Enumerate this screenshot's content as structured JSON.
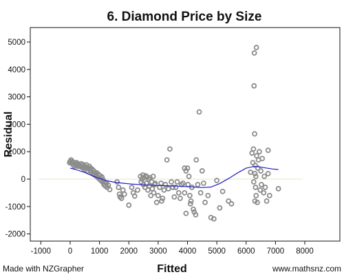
{
  "chart_data": {
    "type": "scatter",
    "title": "6. Diamond Price by Size",
    "xlabel": "Fitted",
    "ylabel": "Residual",
    "xlim": [
      -1000,
      8000
    ],
    "ylim": [
      -2000,
      5000
    ],
    "xticks": [
      -1000,
      0,
      1000,
      2000,
      3000,
      4000,
      5000,
      6000,
      7000,
      8000
    ],
    "yticks": [
      -2000,
      -1000,
      0,
      1000,
      2000,
      3000,
      4000,
      5000
    ],
    "grid": false,
    "zero_line": true,
    "colors": {
      "points": "#8c8c8c",
      "smoother": "#1a1acc",
      "zero_line": "#e6e6cc"
    },
    "points": [
      [
        -20,
        600
      ],
      [
        0,
        650
      ],
      [
        30,
        700
      ],
      [
        50,
        580
      ],
      [
        80,
        640
      ],
      [
        100,
        520
      ],
      [
        120,
        610
      ],
      [
        140,
        470
      ],
      [
        170,
        560
      ],
      [
        200,
        500
      ],
      [
        220,
        600
      ],
      [
        250,
        470
      ],
      [
        270,
        560
      ],
      [
        300,
        520
      ],
      [
        320,
        480
      ],
      [
        350,
        450
      ],
      [
        380,
        560
      ],
      [
        400,
        500
      ],
      [
        430,
        410
      ],
      [
        450,
        520
      ],
      [
        480,
        430
      ],
      [
        500,
        350
      ],
      [
        520,
        450
      ],
      [
        550,
        520
      ],
      [
        580,
        300
      ],
      [
        600,
        420
      ],
      [
        620,
        380
      ],
      [
        650,
        470
      ],
      [
        680,
        320
      ],
      [
        700,
        400
      ],
      [
        720,
        260
      ],
      [
        760,
        350
      ],
      [
        780,
        200
      ],
      [
        800,
        300
      ],
      [
        830,
        150
      ],
      [
        850,
        250
      ],
      [
        880,
        180
      ],
      [
        900,
        100
      ],
      [
        920,
        220
      ],
      [
        950,
        50
      ],
      [
        980,
        150
      ],
      [
        1000,
        0
      ],
      [
        1020,
        120
      ],
      [
        1050,
        -50
      ],
      [
        1080,
        80
      ],
      [
        1100,
        -100
      ],
      [
        1120,
        -20
      ],
      [
        1150,
        -200
      ],
      [
        1170,
        -120
      ],
      [
        1200,
        -250
      ],
      [
        1230,
        -150
      ],
      [
        1260,
        -300
      ],
      [
        1300,
        -220
      ],
      [
        1350,
        -380
      ],
      [
        1600,
        -100
      ],
      [
        1650,
        -300
      ],
      [
        1680,
        -550
      ],
      [
        1700,
        -650
      ],
      [
        1750,
        -700
      ],
      [
        1800,
        -400
      ],
      [
        1850,
        -550
      ],
      [
        2000,
        -950
      ],
      [
        2100,
        -300
      ],
      [
        2150,
        -500
      ],
      [
        2200,
        -620
      ],
      [
        2300,
        -400
      ],
      [
        2400,
        100
      ],
      [
        2420,
        -100
      ],
      [
        2450,
        0
      ],
      [
        2480,
        150
      ],
      [
        2500,
        -200
      ],
      [
        2520,
        50
      ],
      [
        2550,
        -300
      ],
      [
        2580,
        120
      ],
      [
        2600,
        -150
      ],
      [
        2620,
        80
      ],
      [
        2650,
        -400
      ],
      [
        2680,
        0
      ],
      [
        2700,
        -250
      ],
      [
        2720,
        50
      ],
      [
        2750,
        -600
      ],
      [
        2780,
        -100
      ],
      [
        2800,
        -350
      ],
      [
        2830,
        100
      ],
      [
        2850,
        -500
      ],
      [
        2880,
        -200
      ],
      [
        2900,
        -150
      ],
      [
        2950,
        -850
      ],
      [
        3000,
        -600
      ],
      [
        3050,
        -300
      ],
      [
        3100,
        -150
      ],
      [
        3120,
        -800
      ],
      [
        3150,
        -700
      ],
      [
        3200,
        -400
      ],
      [
        3250,
        -200
      ],
      [
        3300,
        700
      ],
      [
        3350,
        -350
      ],
      [
        3400,
        1100
      ],
      [
        3450,
        -100
      ],
      [
        3500,
        -300
      ],
      [
        3550,
        -650
      ],
      [
        3600,
        -300
      ],
      [
        3650,
        -100
      ],
      [
        3700,
        -500
      ],
      [
        3750,
        -700
      ],
      [
        3800,
        -200
      ],
      [
        3850,
        -150
      ],
      [
        3900,
        -500
      ],
      [
        3900,
        400
      ],
      [
        3950,
        300
      ],
      [
        3950,
        -1250
      ],
      [
        4000,
        400
      ],
      [
        4020,
        -200
      ],
      [
        4050,
        100
      ],
      [
        4080,
        -600
      ],
      [
        4100,
        -900
      ],
      [
        4120,
        -800
      ],
      [
        4150,
        -300
      ],
      [
        4200,
        -1100
      ],
      [
        4230,
        -1200
      ],
      [
        4280,
        -1300
      ],
      [
        4300,
        700
      ],
      [
        4350,
        -200
      ],
      [
        4400,
        2450
      ],
      [
        4450,
        -500
      ],
      [
        4500,
        300
      ],
      [
        4550,
        -150
      ],
      [
        4600,
        -850
      ],
      [
        4700,
        -600
      ],
      [
        4800,
        -1400
      ],
      [
        4900,
        -1450
      ],
      [
        5000,
        -50
      ],
      [
        5100,
        -1050
      ],
      [
        5200,
        -450
      ],
      [
        5400,
        -800
      ],
      [
        5500,
        -900
      ],
      [
        6150,
        250
      ],
      [
        6200,
        950
      ],
      [
        6230,
        600
      ],
      [
        6250,
        1100
      ],
      [
        6260,
        -100
      ],
      [
        6270,
        3400
      ],
      [
        6280,
        4600
      ],
      [
        6290,
        1650
      ],
      [
        6300,
        200
      ],
      [
        6300,
        -800
      ],
      [
        6310,
        500
      ],
      [
        6320,
        -300
      ],
      [
        6330,
        100
      ],
      [
        6340,
        -600
      ],
      [
        6350,
        4800
      ],
      [
        6360,
        850
      ],
      [
        6380,
        -850
      ],
      [
        6400,
        400
      ],
      [
        6420,
        700
      ],
      [
        6450,
        1000
      ],
      [
        6480,
        -400
      ],
      [
        6500,
        300
      ],
      [
        6520,
        -200
      ],
      [
        6550,
        750
      ],
      [
        6600,
        -500
      ],
      [
        6620,
        100
      ],
      [
        6650,
        -300
      ],
      [
        6700,
        -800
      ],
      [
        6750,
        200
      ],
      [
        6800,
        -600
      ],
      [
        7100,
        -350
      ],
      [
        6750,
        1050
      ]
    ],
    "smoother": [
      [
        0,
        400
      ],
      [
        250,
        330
      ],
      [
        500,
        240
      ],
      [
        750,
        120
      ],
      [
        1000,
        20
      ],
      [
        1250,
        -60
      ],
      [
        1500,
        -110
      ],
      [
        1800,
        -150
      ],
      [
        2100,
        -180
      ],
      [
        2500,
        -210
      ],
      [
        2900,
        -230
      ],
      [
        3300,
        -240
      ],
      [
        3700,
        -260
      ],
      [
        4100,
        -280
      ],
      [
        4500,
        -310
      ],
      [
        4800,
        -290
      ],
      [
        5100,
        -160
      ],
      [
        5400,
        20
      ],
      [
        5700,
        220
      ],
      [
        6000,
        400
      ],
      [
        6300,
        470
      ],
      [
        6600,
        420
      ],
      [
        6900,
        370
      ],
      [
        7100,
        350
      ]
    ]
  },
  "footer": {
    "left": "Made with NZGrapher",
    "right": "www.mathsnz.com"
  }
}
